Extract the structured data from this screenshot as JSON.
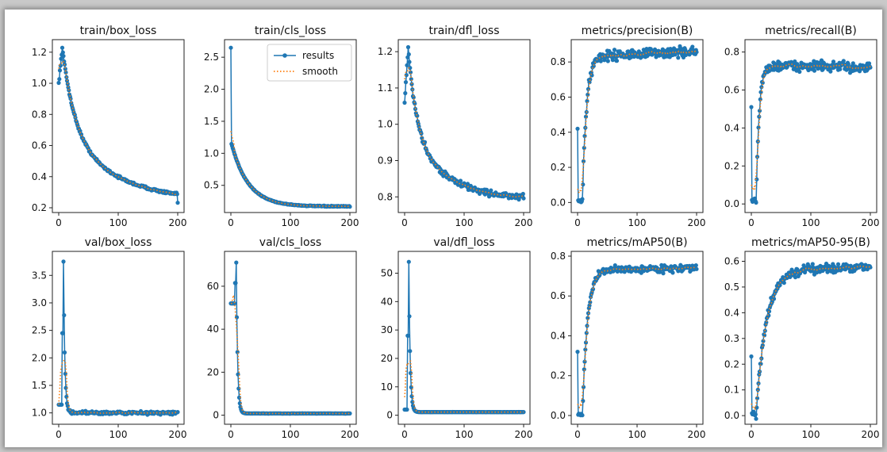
{
  "legend": {
    "results": "results",
    "smooth": "smooth"
  },
  "colors": {
    "results": "#1f77b4",
    "smooth": "#ff7f0e"
  },
  "chart_data": [
    {
      "type": "line",
      "title": "train/box_loss",
      "xlim": [
        0,
        200
      ],
      "ylim": [
        0.2,
        1.25
      ],
      "xticks": [
        0,
        100,
        200
      ],
      "yticks": [
        0.2,
        0.4,
        0.6,
        0.8,
        1.0,
        1.2
      ],
      "ytick_labels": [
        "0.2",
        "0.4",
        "0.6",
        "0.8",
        "1.0",
        "1.2"
      ],
      "curve": {
        "kind": "decay",
        "start": 1.0,
        "peak": 1.23,
        "peak_epoch": 6,
        "end": 0.23,
        "rate": 0.012,
        "noise": 0.012
      },
      "legend": false
    },
    {
      "type": "line",
      "title": "train/cls_loss",
      "xlim": [
        0,
        200
      ],
      "ylim": [
        0.15,
        2.7
      ],
      "xticks": [
        0,
        100,
        200
      ],
      "yticks": [
        0.5,
        1.0,
        1.5,
        2.0,
        2.5
      ],
      "ytick_labels": [
        "0.5",
        "1.0",
        "1.5",
        "2.0",
        "2.5"
      ],
      "curve": {
        "kind": "spike_decay",
        "start": 2.65,
        "mid": 1.15,
        "end": 0.17,
        "rate": 0.035,
        "noise": 0.01
      },
      "legend": true
    },
    {
      "type": "line",
      "title": "train/dfl_loss",
      "xlim": [
        0,
        200
      ],
      "ylim": [
        0.77,
        1.22
      ],
      "xticks": [
        0,
        100,
        200
      ],
      "yticks": [
        0.8,
        0.9,
        1.0,
        1.1,
        1.2
      ],
      "ytick_labels": [
        "0.8",
        "0.9",
        "1.0",
        "1.1",
        "1.2"
      ],
      "curve": {
        "kind": "decay",
        "start": 1.06,
        "peak": 1.21,
        "peak_epoch": 6,
        "end": 0.79,
        "rate": 0.018,
        "noise": 0.012
      },
      "legend": false
    },
    {
      "type": "line",
      "title": "metrics/precision(B)",
      "xlim": [
        0,
        200
      ],
      "ylim": [
        -0.03,
        0.9
      ],
      "xticks": [
        0,
        100,
        200
      ],
      "yticks": [
        0.0,
        0.2,
        0.4,
        0.6,
        0.8
      ],
      "ytick_labels": [
        "0.0",
        "0.2",
        "0.4",
        "0.6",
        "0.8"
      ],
      "curve": {
        "kind": "rise",
        "start": 0.42,
        "low": 0.0,
        "end": 0.86,
        "plateau": 0.83,
        "rate": 0.15,
        "noise": 0.045
      },
      "legend": false
    },
    {
      "type": "line",
      "title": "metrics/recall(B)",
      "xlim": [
        0,
        200
      ],
      "ylim": [
        -0.02,
        0.84
      ],
      "xticks": [
        0,
        100,
        200
      ],
      "yticks": [
        0.0,
        0.2,
        0.4,
        0.6,
        0.8
      ],
      "ytick_labels": [
        "0.0",
        "0.2",
        "0.4",
        "0.6",
        "0.8"
      ],
      "curve": {
        "kind": "rise",
        "start": 0.51,
        "low": 0.01,
        "end": 0.72,
        "plateau": 0.73,
        "rate": 0.2,
        "noise": 0.04
      },
      "legend": false
    },
    {
      "type": "line",
      "title": "val/box_loss",
      "xlim": [
        0,
        200
      ],
      "ylim": [
        0.88,
        3.85
      ],
      "xticks": [
        0,
        100,
        200
      ],
      "yticks": [
        1.0,
        1.5,
        2.0,
        2.5,
        3.0,
        3.5
      ],
      "ytick_labels": [
        "1.0",
        "1.5",
        "2.0",
        "2.5",
        "3.0",
        "3.5"
      ],
      "curve": {
        "kind": "spike_flat",
        "start": 1.15,
        "spike": 3.75,
        "spike_epoch": 8,
        "end": 1.0,
        "noise": 0.04
      },
      "legend": false
    },
    {
      "type": "line",
      "title": "val/cls_loss",
      "xlim": [
        0,
        200
      ],
      "ylim": [
        -2,
        74
      ],
      "xticks": [
        0,
        100,
        200
      ],
      "yticks": [
        0,
        20,
        40,
        60
      ],
      "ytick_labels": [
        "0",
        "20",
        "40",
        "60"
      ],
      "curve": {
        "kind": "spike_flat",
        "start": 52,
        "spike": 71,
        "spike_epoch": 9,
        "end": 0.8,
        "noise": 0.1
      },
      "legend": false
    },
    {
      "type": "line",
      "title": "val/dfl_loss",
      "xlim": [
        0,
        200
      ],
      "ylim": [
        -1.5,
        56
      ],
      "xticks": [
        0,
        100,
        200
      ],
      "yticks": [
        0,
        10,
        20,
        30,
        40,
        50
      ],
      "ytick_labels": [
        "0",
        "10",
        "20",
        "30",
        "40",
        "50"
      ],
      "curve": {
        "kind": "spike_flat",
        "start": 2,
        "spike": 54,
        "spike_epoch": 7,
        "end": 1.1,
        "noise": 0.05
      },
      "legend": false
    },
    {
      "type": "line",
      "title": "metrics/mAP50(B)",
      "xlim": [
        0,
        200
      ],
      "ylim": [
        -0.02,
        0.8
      ],
      "xticks": [
        0,
        100,
        200
      ],
      "yticks": [
        0.0,
        0.2,
        0.4,
        0.6,
        0.8
      ],
      "ytick_labels": [
        "0.0",
        "0.2",
        "0.4",
        "0.6",
        "0.8"
      ],
      "curve": {
        "kind": "rise",
        "start": 0.32,
        "low": 0.0,
        "end": 0.74,
        "plateau": 0.73,
        "rate": 0.12,
        "noise": 0.025
      },
      "legend": false
    },
    {
      "type": "line",
      "title": "metrics/mAP50-95(B)",
      "xlim": [
        0,
        200
      ],
      "ylim": [
        -0.015,
        0.62
      ],
      "xticks": [
        0,
        100,
        200
      ],
      "yticks": [
        0.0,
        0.1,
        0.2,
        0.3,
        0.4,
        0.5,
        0.6
      ],
      "ytick_labels": [
        "0.0",
        "0.1",
        "0.2",
        "0.3",
        "0.4",
        "0.5",
        "0.6"
      ],
      "curve": {
        "kind": "rise",
        "start": 0.23,
        "low": 0.0,
        "end": 0.58,
        "plateau": 0.56,
        "rate": 0.06,
        "noise": 0.025
      },
      "legend": false
    }
  ]
}
